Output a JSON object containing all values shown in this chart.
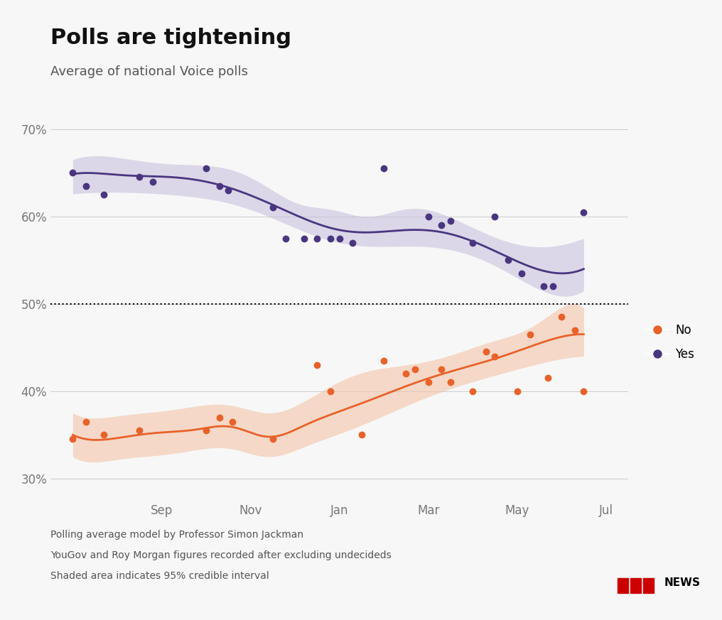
{
  "title": "Polls are tightening",
  "subtitle": "Average of national Voice polls",
  "footer_lines": [
    "Polling average model by Professor Simon Jackman",
    "YouGov and Roy Morgan figures recorded after excluding undecideds",
    "Shaded area indicates 95% credible interval"
  ],
  "yes_color": "#4a3580",
  "yes_band_color": "#c5bedd",
  "no_color": "#e8622a",
  "no_band_color": "#f5c4a8",
  "dotted_line_y": 50,
  "ylim": [
    28,
    72
  ],
  "yticks": [
    30,
    40,
    50,
    60,
    70
  ],
  "background_color": "#f7f7f7",
  "yes_scatter": [
    [
      0.0,
      65.0
    ],
    [
      0.3,
      63.5
    ],
    [
      0.7,
      62.5
    ],
    [
      1.5,
      64.5
    ],
    [
      1.8,
      64.0
    ],
    [
      3.0,
      65.5
    ],
    [
      3.3,
      63.5
    ],
    [
      3.5,
      63.0
    ],
    [
      4.5,
      61.0
    ],
    [
      4.8,
      57.5
    ],
    [
      5.2,
      57.5
    ],
    [
      5.5,
      57.5
    ],
    [
      5.8,
      57.5
    ],
    [
      6.0,
      57.5
    ],
    [
      6.3,
      57.0
    ],
    [
      7.0,
      65.5
    ],
    [
      8.0,
      60.0
    ],
    [
      8.3,
      59.0
    ],
    [
      8.5,
      59.5
    ],
    [
      9.0,
      57.0
    ],
    [
      9.5,
      60.0
    ],
    [
      9.8,
      55.0
    ],
    [
      10.1,
      53.5
    ],
    [
      10.6,
      52.0
    ],
    [
      10.8,
      52.0
    ],
    [
      11.5,
      60.5
    ]
  ],
  "no_scatter": [
    [
      0.0,
      34.5
    ],
    [
      0.3,
      36.5
    ],
    [
      0.7,
      35.0
    ],
    [
      1.5,
      35.5
    ],
    [
      3.0,
      35.5
    ],
    [
      3.3,
      37.0
    ],
    [
      3.6,
      36.5
    ],
    [
      4.5,
      34.5
    ],
    [
      5.5,
      43.0
    ],
    [
      5.8,
      40.0
    ],
    [
      6.5,
      35.0
    ],
    [
      7.0,
      43.5
    ],
    [
      7.5,
      42.0
    ],
    [
      7.7,
      42.5
    ],
    [
      8.0,
      41.0
    ],
    [
      8.3,
      42.5
    ],
    [
      8.5,
      41.0
    ],
    [
      9.0,
      40.0
    ],
    [
      9.3,
      44.5
    ],
    [
      9.5,
      44.0
    ],
    [
      10.0,
      40.0
    ],
    [
      10.3,
      46.5
    ],
    [
      10.7,
      41.5
    ],
    [
      11.0,
      48.5
    ],
    [
      11.3,
      47.0
    ],
    [
      11.5,
      40.0
    ]
  ],
  "yes_curve_x": [
    0.0,
    0.8,
    1.5,
    2.5,
    3.2,
    4.0,
    4.8,
    5.5,
    6.2,
    7.0,
    8.0,
    9.0,
    10.0,
    10.8,
    11.5
  ],
  "yes_curve_y": [
    64.8,
    65.0,
    64.5,
    64.2,
    64.0,
    62.5,
    60.5,
    59.0,
    58.5,
    58.2,
    58.5,
    57.0,
    55.0,
    53.5,
    54.0
  ],
  "yes_curve_upper": [
    66.5,
    66.8,
    66.5,
    65.8,
    65.8,
    64.5,
    62.0,
    61.0,
    60.5,
    60.0,
    61.0,
    58.5,
    57.0,
    56.5,
    57.5
  ],
  "yes_curve_lower": [
    62.5,
    63.0,
    62.5,
    62.2,
    62.0,
    61.0,
    59.0,
    57.5,
    57.0,
    56.5,
    56.5,
    55.5,
    53.0,
    51.0,
    51.5
  ],
  "no_curve_x": [
    0.0,
    0.8,
    1.5,
    2.5,
    3.2,
    4.0,
    4.8,
    5.5,
    6.2,
    7.0,
    8.0,
    9.0,
    10.0,
    10.8,
    11.5
  ],
  "no_curve_y": [
    35.0,
    34.5,
    35.0,
    35.5,
    35.8,
    35.5,
    34.8,
    37.0,
    38.0,
    39.5,
    41.5,
    43.0,
    44.5,
    46.0,
    46.5
  ],
  "no_curve_upper": [
    37.5,
    37.0,
    37.5,
    38.0,
    38.5,
    38.0,
    37.5,
    40.0,
    41.5,
    42.5,
    43.5,
    45.0,
    46.5,
    49.0,
    49.5
  ],
  "no_curve_lower": [
    32.5,
    32.0,
    32.5,
    33.0,
    33.5,
    33.0,
    32.5,
    34.5,
    35.5,
    37.0,
    39.5,
    41.0,
    42.5,
    43.5,
    44.0
  ],
  "xtick_positions": [
    0.0,
    2.0,
    4.0,
    6.0,
    8.0,
    10.0,
    12.0
  ],
  "xtick_labels": [
    "",
    "Sep",
    "Nov",
    "Jan",
    "Mar",
    "May",
    "Jul"
  ]
}
